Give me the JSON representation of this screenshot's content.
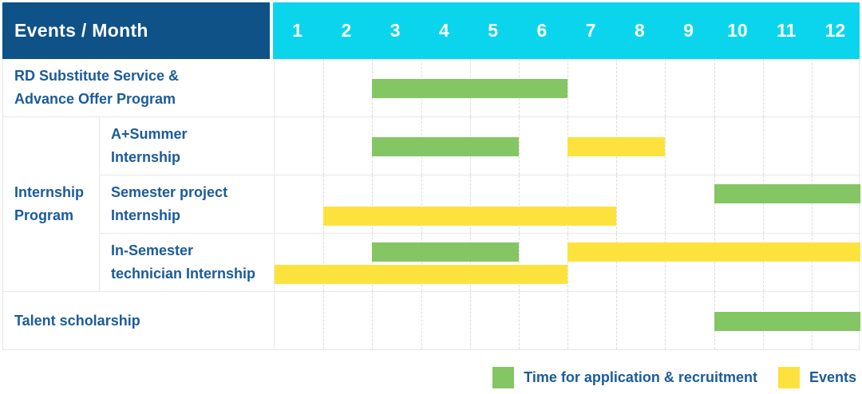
{
  "header": {
    "corner_label": "Events / Month",
    "months": [
      "1",
      "2",
      "3",
      "4",
      "5",
      "6",
      "7",
      "8",
      "9",
      "10",
      "11",
      "12"
    ]
  },
  "colors": {
    "header_bg": "#0E5288",
    "months_bg": "#0BD5EC",
    "label_text": "#1A5B9B",
    "application": "#84C564",
    "event": "#FDE23E"
  },
  "legend": [
    {
      "key": "application",
      "label": "Time for application & recruitment"
    },
    {
      "key": "event",
      "label": "Events"
    }
  ],
  "chart_data": {
    "type": "gantt",
    "x_unit": "month",
    "x_range": [
      1,
      12
    ],
    "series_types": {
      "application": "Time for application & recruitment",
      "event": "Events"
    },
    "rows": [
      {
        "group": null,
        "label": "RD Substitute Service &\nAdvance Offer Program",
        "bars": [
          {
            "type": "application",
            "start": 3,
            "end": 6,
            "lane": "single"
          }
        ]
      },
      {
        "group": "Internship\nProgram",
        "label": "A+Summer\nInternship",
        "bars": [
          {
            "type": "application",
            "start": 3,
            "end": 5,
            "lane": "single"
          },
          {
            "type": "event",
            "start": 7,
            "end": 8,
            "lane": "single"
          }
        ]
      },
      {
        "group": "Internship\nProgram",
        "label": "Semester project\nInternship",
        "bars": [
          {
            "type": "application",
            "start": 10,
            "end": 12,
            "lane": "top"
          },
          {
            "type": "event",
            "start": 2,
            "end": 7,
            "lane": "bottom"
          }
        ]
      },
      {
        "group": "Internship\nProgram",
        "label": "In-Semester\ntechnician Internship",
        "bars": [
          {
            "type": "application",
            "start": 3,
            "end": 5,
            "lane": "top"
          },
          {
            "type": "event",
            "start": 7,
            "end": 12,
            "lane": "top"
          },
          {
            "type": "event",
            "start": 1,
            "end": 6,
            "lane": "bottom"
          }
        ]
      },
      {
        "group": null,
        "label": "Talent scholarship",
        "bars": [
          {
            "type": "application",
            "start": 10,
            "end": 12,
            "lane": "single"
          }
        ]
      }
    ]
  }
}
